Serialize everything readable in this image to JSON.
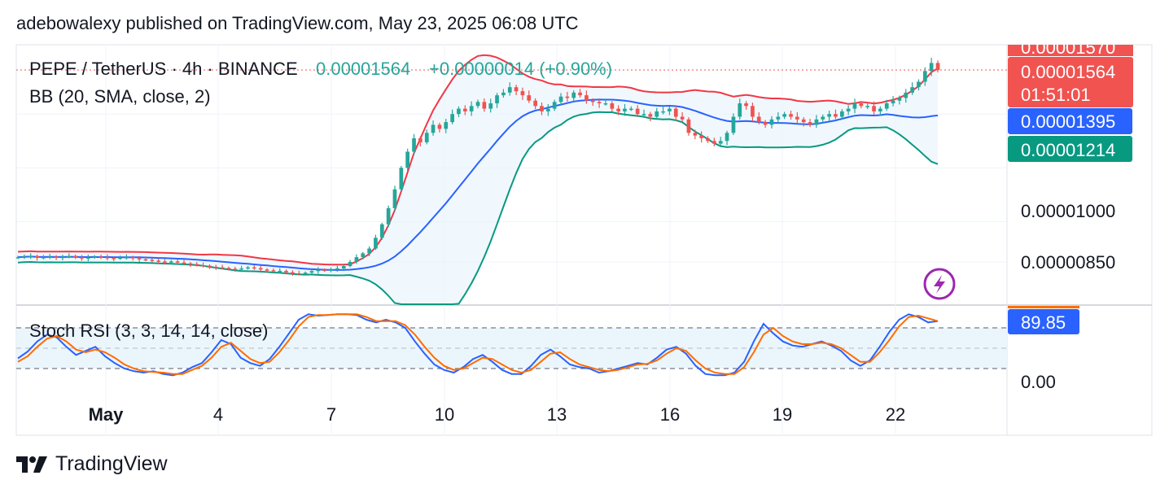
{
  "published_line": "adebowalexy published on TradingView.com, May 23, 2025 06:08 UTC",
  "header": {
    "symbol": "PEPE / TetherUS · 4h · BINANCE",
    "last_price": "0.00001564",
    "change": "+0.00000014 (+0.90%)"
  },
  "indicators": {
    "bb_label": "BB (20, SMA, close, 2)",
    "stoch_label": "Stoch RSI (3, 3, 14, 14, close)"
  },
  "price_axis": {
    "ticks": [
      "0.00001000",
      "0.00000850"
    ],
    "badges": {
      "top_partial": "0.00001570",
      "current": "0.00001564",
      "countdown": "01:51:01",
      "bb_basis": "0.00001395",
      "bb_lower": "0.00001214"
    }
  },
  "stoch_axis": {
    "value_badge": "89.85",
    "ticks": [
      "0.00"
    ]
  },
  "time_axis": {
    "labels": [
      "May",
      "4",
      "7",
      "10",
      "13",
      "16",
      "19",
      "22"
    ]
  },
  "brand": {
    "wordmark": "TradingView",
    "icon": "tradingview-logo-icon"
  },
  "colors": {
    "up": "#26a69a",
    "down": "#ef5350",
    "bb_upper": "#f23645",
    "bb_basis": "#2962ff",
    "bb_lower": "#089981",
    "stoch_k": "#2962ff",
    "stoch_d": "#ff6d00",
    "badge_red": "#f05350",
    "badge_blue": "#2962ff",
    "badge_green": "#089981",
    "lightning": "#9c27b0"
  },
  "chart_data": [
    {
      "type": "candlestick",
      "series": [
        {
          "name": "Price",
          "values": [
            8.68e-06,
            8.7e-06,
            8.72e-06,
            8.65e-06,
            8.68e-06,
            8.7e-06,
            8.66e-06,
            8.69e-06,
            8.72e-06,
            8.68e-06,
            8.63e-06,
            8.67e-06,
            8.7e-06,
            8.68e-06,
            8.65e-06,
            8.63e-06,
            8.66e-06,
            8.68e-06,
            8.64e-06,
            8.6e-06,
            8.58e-06,
            8.55e-06,
            8.52e-06,
            8.5e-06,
            8.52e-06,
            8.48e-06,
            8.45e-06,
            8.42e-06,
            8.38e-06,
            8.36e-06,
            8.32e-06,
            8.3e-06,
            8.28e-06,
            8.25e-06,
            8.22e-06,
            8.26e-06,
            8.3e-06,
            8.27e-06,
            8.22e-06,
            8.19e-06,
            8.15e-06,
            8.17e-06,
            8.12e-06,
            8.08e-06,
            8.06e-06,
            8.1e-06,
            8.16e-06,
            8.21e-06,
            8.18e-06,
            8.22e-06,
            8.26e-06,
            8.35e-06,
            8.5e-06,
            8.68e-06,
            8.82e-06,
            9e-06,
            9.4e-06,
            9.9e-06,
            1.05e-05,
            1.12e-05,
            1.2e-05,
            1.26e-05,
            1.31e-05,
            1.295e-05,
            1.33e-05,
            1.36e-05,
            1.345e-05,
            1.37e-05,
            1.4e-05,
            1.42e-05,
            1.41e-05,
            1.43e-05,
            1.445e-05,
            1.42e-05,
            1.44e-05,
            1.47e-05,
            1.48e-05,
            1.5e-05,
            1.485e-05,
            1.47e-05,
            1.45e-05,
            1.43e-05,
            1.41e-05,
            1.42e-05,
            1.445e-05,
            1.465e-05,
            1.46e-05,
            1.48e-05,
            1.47e-05,
            1.45e-05,
            1.445e-05,
            1.44e-05,
            1.44e-05,
            1.42e-05,
            1.41e-05,
            1.42e-05,
            1.42e-05,
            1.4e-05,
            1.4e-05,
            1.39e-05,
            1.41e-05,
            1.41e-05,
            1.42e-05,
            1.39e-05,
            1.38e-05,
            1.33e-05,
            1.32e-05,
            1.31e-05,
            1.3e-05,
            1.29e-05,
            1.3e-05,
            1.33e-05,
            1.39e-05,
            1.44e-05,
            1.43e-05,
            1.39e-05,
            1.37e-05,
            1.36e-05,
            1.38e-05,
            1.39e-05,
            1.4e-05,
            1.39e-05,
            1.38e-05,
            1.37e-05,
            1.36e-05,
            1.38e-05,
            1.39e-05,
            1.4e-05,
            1.39e-05,
            1.41e-05,
            1.42e-05,
            1.44e-05,
            1.43e-05,
            1.43e-05,
            1.41e-05,
            1.42e-05,
            1.44e-05,
            1.45e-05,
            1.46e-05,
            1.48e-05,
            1.5e-05,
            1.52e-05,
            1.56e-05,
            1.59e-05,
            1.564e-05
          ]
        }
      ],
      "title": "PEPE / TetherUS · 4h · BINANCE",
      "overlays": [
        "BB (20, SMA, close, 2)"
      ],
      "bb_last": {
        "upper": 1.57e-05,
        "basis": 1.395e-05,
        "lower": 1.214e-05
      },
      "x_labels": [
        "May",
        "4",
        "7",
        "10",
        "13",
        "16",
        "19",
        "22"
      ],
      "y_ticks": [
        1e-05,
        8.5e-06
      ],
      "grid": true
    },
    {
      "type": "line",
      "title": "Stoch RSI (3, 3, 14, 14, close)",
      "series": [
        {
          "name": "K",
          "values": [
            35,
            45,
            60,
            70,
            66,
            52,
            40,
            46,
            52,
            38,
            28,
            20,
            16,
            14,
            16,
            12,
            10,
            14,
            22,
            28,
            44,
            62,
            56,
            36,
            28,
            24,
            34,
            52,
            72,
            92,
            100,
            98,
            99,
            100,
            100,
            99,
            92,
            88,
            92,
            88,
            80,
            60,
            42,
            26,
            18,
            14,
            22,
            34,
            40,
            30,
            18,
            12,
            12,
            24,
            40,
            48,
            38,
            26,
            22,
            20,
            14,
            16,
            20,
            24,
            28,
            26,
            36,
            48,
            52,
            42,
            24,
            12,
            10,
            10,
            14,
            30,
            60,
            86,
            72,
            60,
            54,
            52,
            56,
            60,
            54,
            46,
            32,
            24,
            32,
            52,
            74,
            92,
            100,
            96,
            88,
            90
          ]
        },
        {
          "name": "D",
          "values": [
            30,
            38,
            52,
            64,
            68,
            60,
            48,
            44,
            48,
            44,
            36,
            26,
            20,
            16,
            15,
            14,
            12,
            12,
            18,
            24,
            36,
            52,
            58,
            46,
            34,
            28,
            30,
            44,
            62,
            82,
            96,
            99,
            99,
            100,
            100,
            100,
            96,
            90,
            90,
            90,
            84,
            70,
            52,
            36,
            24,
            18,
            20,
            28,
            36,
            34,
            26,
            18,
            14,
            18,
            30,
            42,
            44,
            34,
            26,
            22,
            18,
            16,
            18,
            22,
            26,
            27,
            32,
            42,
            50,
            46,
            32,
            20,
            14,
            12,
            12,
            22,
            44,
            70,
            80,
            68,
            60,
            56,
            56,
            58,
            56,
            50,
            40,
            30,
            30,
            44,
            62,
            82,
            96,
            98,
            94,
            90
          ]
        }
      ],
      "ylim": [
        0,
        100
      ],
      "bands": [
        20,
        80
      ],
      "last_value": 89.85
    }
  ]
}
